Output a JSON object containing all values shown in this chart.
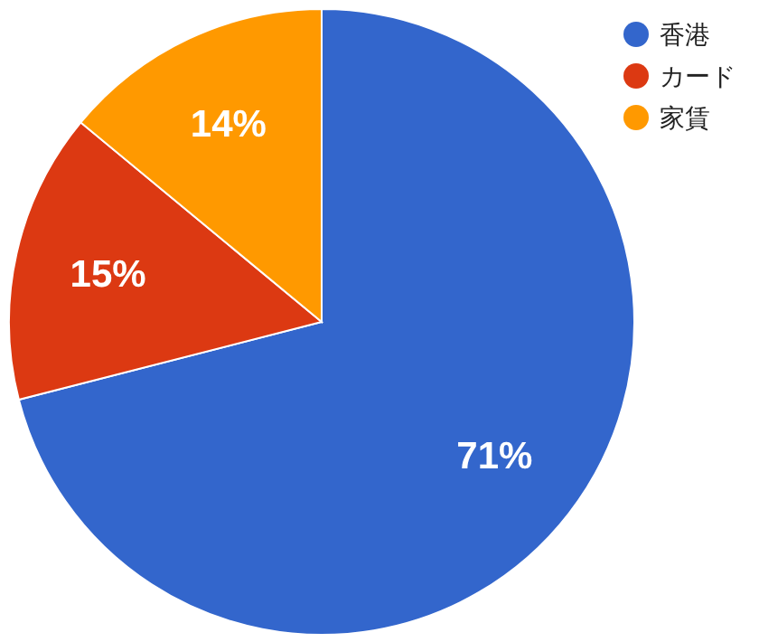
{
  "chart_data": {
    "type": "pie",
    "categories": [
      "香港",
      "カード",
      "家賃"
    ],
    "values": [
      71,
      15,
      14
    ],
    "colors": [
      "#3366cc",
      "#dc3912",
      "#ff9900"
    ],
    "value_labels": [
      "71%",
      "15%",
      "14%"
    ],
    "legend": "top right"
  }
}
